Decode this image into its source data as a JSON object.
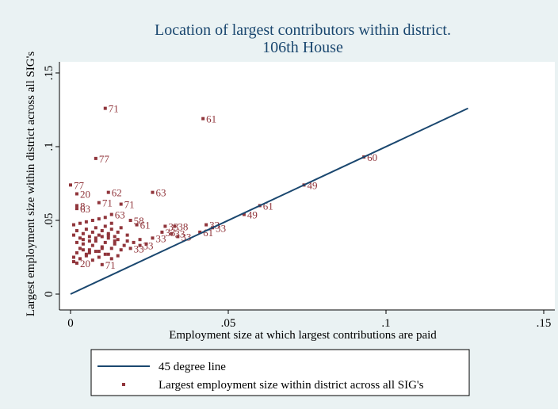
{
  "chart_data": {
    "type": "scatter",
    "title": "Location of largest contributors within district.",
    "subtitle": "106th House",
    "x_label": "Employment size at which largest contributions are paid",
    "y_label": "Largest employment size within district across all SIG's",
    "xlim": [
      0,
      0.15
    ],
    "ylim": [
      0,
      0.15
    ],
    "xticks": [
      0,
      {
        "value": 0.05,
        "label": ".05"
      },
      {
        "value": 0.1,
        "label": ".1"
      },
      {
        "value": 0.15,
        "label": ".15"
      }
    ],
    "yticks": [
      0,
      {
        "value": 0.05,
        "label": ".05"
      },
      {
        "value": 0.1,
        "label": ".1"
      },
      {
        "value": 0.15,
        "label": ".15"
      }
    ],
    "series": [
      {
        "name": "45 degree line",
        "kind": "line",
        "color": "#1a476f",
        "x": [
          0,
          0.126
        ],
        "values": [
          0,
          0.126
        ]
      },
      {
        "name": "Largest employment size within district across all SIG's",
        "kind": "scatter",
        "color": "#90353b",
        "x": [
          0.011,
          0.042,
          0.008,
          0.093,
          0.074,
          0.06,
          0.055,
          0.012,
          0.026,
          0.0,
          0.002,
          0.016,
          0.009,
          0.002,
          0.002,
          0.043,
          0.045,
          0.041,
          0.019,
          0.021,
          0.03,
          0.033,
          0.034,
          0.026,
          0.029,
          0.032,
          0.019,
          0.022,
          0.01,
          0.002,
          0.013,
          0.001,
          0.002,
          0.003,
          0.004,
          0.005,
          0.006,
          0.007,
          0.008,
          0.009,
          0.01,
          0.011,
          0.012,
          0.013,
          0.014,
          0.015,
          0.016,
          0.017,
          0.018,
          0.001,
          0.002,
          0.003,
          0.004,
          0.005,
          0.006,
          0.007,
          0.008,
          0.009,
          0.01,
          0.011,
          0.012,
          0.013,
          0.014,
          0.015,
          0.016,
          0.001,
          0.003,
          0.005,
          0.007,
          0.009,
          0.011,
          0.013,
          0.015,
          0.002,
          0.004,
          0.006,
          0.008,
          0.01,
          0.012,
          0.014,
          0.001,
          0.003,
          0.005,
          0.007,
          0.009,
          0.011,
          0.013,
          0.02,
          0.022,
          0.024,
          0.018,
          0.004,
          0.006,
          0.008,
          0.01,
          0.012
        ],
        "values": [
          0.126,
          0.119,
          0.092,
          0.093,
          0.074,
          0.06,
          0.054,
          0.069,
          0.069,
          0.074,
          0.068,
          0.061,
          0.062,
          0.06,
          0.058,
          0.047,
          0.045,
          0.042,
          0.05,
          0.047,
          0.046,
          0.046,
          0.039,
          0.038,
          0.042,
          0.041,
          0.031,
          0.033,
          0.02,
          0.021,
          0.054,
          0.025,
          0.028,
          0.031,
          0.034,
          0.027,
          0.03,
          0.033,
          0.036,
          0.029,
          0.032,
          0.035,
          0.038,
          0.031,
          0.034,
          0.037,
          0.03,
          0.033,
          0.036,
          0.04,
          0.043,
          0.038,
          0.041,
          0.044,
          0.039,
          0.042,
          0.045,
          0.04,
          0.043,
          0.046,
          0.041,
          0.044,
          0.039,
          0.042,
          0.045,
          0.022,
          0.024,
          0.026,
          0.023,
          0.025,
          0.027,
          0.024,
          0.026,
          0.035,
          0.037,
          0.036,
          0.038,
          0.039,
          0.04,
          0.036,
          0.047,
          0.048,
          0.049,
          0.05,
          0.051,
          0.052,
          0.048,
          0.035,
          0.037,
          0.034,
          0.04,
          0.03,
          0.028,
          0.029,
          0.031,
          0.027
        ],
        "point_labels": [
          "71",
          "61",
          "77",
          "60",
          "49",
          "61",
          "49",
          "62",
          "63",
          "77",
          "20",
          "71",
          "71",
          "8",
          "63",
          "33",
          "33",
          "61",
          "58",
          "61",
          "33",
          "38",
          "33",
          "33",
          "33",
          "33",
          "33",
          "33",
          "71",
          "20",
          "63",
          null,
          null,
          null,
          null,
          null,
          null,
          null,
          null,
          null,
          null,
          null,
          null,
          null,
          null,
          null,
          null,
          null,
          null,
          null,
          null,
          null,
          null,
          null,
          null,
          null,
          null,
          null,
          null,
          null,
          null,
          null,
          null,
          null,
          null,
          null,
          null,
          null,
          null,
          null,
          null,
          null,
          null,
          null,
          null,
          null,
          null,
          null,
          null,
          null,
          null,
          null,
          null,
          null,
          null,
          null,
          null,
          null,
          null,
          null,
          null,
          null,
          null,
          null,
          null,
          null
        ]
      }
    ]
  }
}
